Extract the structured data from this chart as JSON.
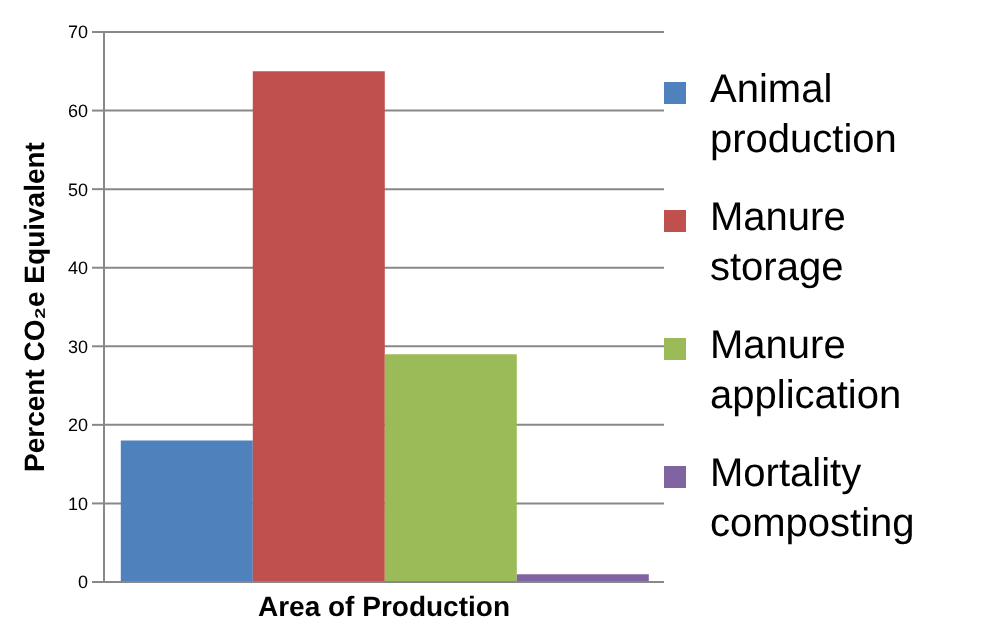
{
  "chart_data": {
    "type": "bar",
    "xlabel": "Area of Production",
    "ylabel": "Percent CO₂e Equivalent",
    "categories": [
      null
    ],
    "series": [
      {
        "name": "Animal production",
        "color": "#4f81bd",
        "values": [
          18
        ]
      },
      {
        "name": "Manure storage",
        "color": "#c0504d",
        "values": [
          65
        ]
      },
      {
        "name": "Manure application",
        "color": "#9bbb59",
        "values": [
          29
        ]
      },
      {
        "name": "Mortality composting",
        "color": "#8064a2",
        "values": [
          1
        ]
      }
    ],
    "ylim": [
      0,
      70
    ],
    "yticks": [
      0,
      10,
      20,
      30,
      40,
      50,
      60,
      70
    ],
    "grid": "y",
    "legend": "right"
  }
}
